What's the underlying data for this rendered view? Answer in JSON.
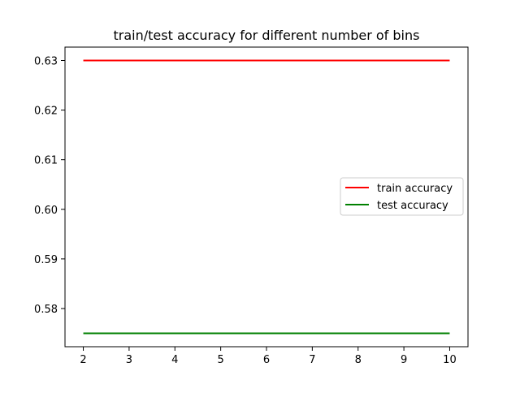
{
  "chart_data": {
    "type": "line",
    "title": "train/test accuracy for different number of bins",
    "xlabel": "",
    "ylabel": "",
    "x": [
      2,
      3,
      4,
      5,
      6,
      7,
      8,
      9,
      10
    ],
    "xlim": [
      1.6,
      10.4
    ],
    "ylim": [
      0.5723,
      0.6327
    ],
    "xticks": [
      2,
      3,
      4,
      5,
      6,
      7,
      8,
      9,
      10
    ],
    "yticks": [
      0.58,
      0.59,
      0.6,
      0.61,
      0.62,
      0.63
    ],
    "ytick_labels": [
      "0.58",
      "0.59",
      "0.60",
      "0.61",
      "0.62",
      "0.63"
    ],
    "grid": false,
    "legend_position": "center-right",
    "series": [
      {
        "name": "train accuracy",
        "color": "#ff0000",
        "values": [
          0.63,
          0.63,
          0.63,
          0.63,
          0.63,
          0.63,
          0.63,
          0.63,
          0.63
        ]
      },
      {
        "name": "test accuracy",
        "color": "#008000",
        "values": [
          0.575,
          0.575,
          0.575,
          0.575,
          0.575,
          0.575,
          0.575,
          0.575,
          0.575
        ]
      }
    ]
  }
}
